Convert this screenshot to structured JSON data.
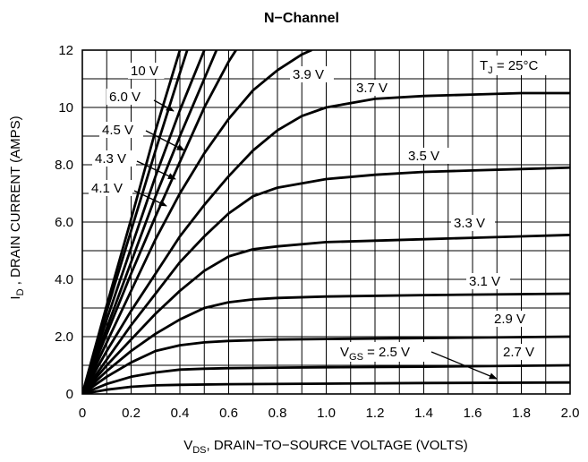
{
  "chart_data": {
    "type": "line",
    "title": "N−Channel",
    "xlabel": {
      "main": "V",
      "sub": "DS",
      "rest": ", DRAIN−TO−SOURCE VOLTAGE (VOLTS)"
    },
    "ylabel": {
      "main": "I",
      "sub": "D",
      "rest": " , DRAIN CURRENT (AMPS)"
    },
    "xlim": [
      0,
      2.0
    ],
    "ylim": [
      0,
      12
    ],
    "x_ticks": [
      0,
      0.2,
      0.4,
      0.6,
      0.8,
      1.0,
      1.2,
      1.4,
      1.6,
      1.8,
      2.0
    ],
    "x_tick_labels": [
      "0",
      "0.2",
      "0.4",
      "0.6",
      "0.8",
      "1.0",
      "1.2",
      "1.4",
      "1.6",
      "1.8",
      "2.0"
    ],
    "y_ticks": [
      0,
      2,
      4,
      6,
      8,
      10,
      12
    ],
    "y_tick_labels": [
      "0",
      "2.0",
      "4.0",
      "6.0",
      "8.0",
      "10",
      "12"
    ],
    "grid": true,
    "series": [
      {
        "name": "10 V",
        "x": [
          0,
          0.1,
          0.2,
          0.3,
          0.4
        ],
        "y": [
          0,
          3.1,
          6.1,
          9.2,
          12.0
        ]
      },
      {
        "name": "6.0 V",
        "x": [
          0,
          0.1,
          0.2,
          0.3,
          0.4,
          0.43
        ],
        "y": [
          0,
          2.9,
          5.7,
          8.5,
          11.2,
          12.0
        ]
      },
      {
        "name": "4.5 V",
        "x": [
          0,
          0.1,
          0.2,
          0.3,
          0.4,
          0.5
        ],
        "y": [
          0,
          2.6,
          5.1,
          7.6,
          9.9,
          12.0
        ]
      },
      {
        "name": "4.3 V",
        "x": [
          0,
          0.1,
          0.2,
          0.3,
          0.4,
          0.5,
          0.55
        ],
        "y": [
          0,
          2.3,
          4.6,
          6.9,
          9.0,
          11.0,
          12.0
        ]
      },
      {
        "name": "4.1 V",
        "x": [
          0,
          0.1,
          0.2,
          0.3,
          0.4,
          0.5,
          0.6,
          0.63
        ],
        "y": [
          0,
          2.1,
          4.2,
          6.2,
          8.1,
          10.0,
          11.6,
          12.0
        ]
      },
      {
        "name": "3.9 V",
        "x": [
          0,
          0.1,
          0.2,
          0.3,
          0.4,
          0.5,
          0.6,
          0.7,
          0.8,
          0.9,
          0.94
        ],
        "y": [
          0,
          1.8,
          3.6,
          5.4,
          7.0,
          8.4,
          9.6,
          10.6,
          11.3,
          11.85,
          12.0
        ]
      },
      {
        "name": "3.7 V",
        "x": [
          0,
          0.1,
          0.2,
          0.3,
          0.4,
          0.5,
          0.6,
          0.7,
          0.8,
          0.9,
          1.0,
          1.2,
          1.4,
          1.6,
          1.8,
          2.0
        ],
        "y": [
          0,
          1.5,
          2.9,
          4.2,
          5.5,
          6.6,
          7.6,
          8.5,
          9.2,
          9.7,
          10.0,
          10.3,
          10.4,
          10.45,
          10.5,
          10.5
        ]
      },
      {
        "name": "3.5 V",
        "x": [
          0,
          0.1,
          0.2,
          0.3,
          0.4,
          0.5,
          0.6,
          0.7,
          0.8,
          1.0,
          1.2,
          1.4,
          1.6,
          1.8,
          2.0
        ],
        "y": [
          0,
          1.2,
          2.4,
          3.5,
          4.6,
          5.5,
          6.3,
          6.9,
          7.2,
          7.5,
          7.65,
          7.75,
          7.8,
          7.85,
          7.9
        ]
      },
      {
        "name": "3.3 V",
        "x": [
          0,
          0.1,
          0.2,
          0.3,
          0.4,
          0.5,
          0.6,
          0.7,
          0.8,
          1.0,
          1.2,
          1.4,
          1.6,
          1.8,
          2.0
        ],
        "y": [
          0,
          1.0,
          1.9,
          2.8,
          3.6,
          4.3,
          4.8,
          5.05,
          5.15,
          5.3,
          5.35,
          5.4,
          5.45,
          5.5,
          5.55
        ]
      },
      {
        "name": "3.1 V",
        "x": [
          0,
          0.1,
          0.2,
          0.3,
          0.4,
          0.5,
          0.6,
          0.7,
          0.8,
          1.0,
          1.4,
          2.0
        ],
        "y": [
          0,
          0.8,
          1.5,
          2.1,
          2.6,
          3.0,
          3.2,
          3.3,
          3.35,
          3.4,
          3.45,
          3.5
        ]
      },
      {
        "name": "2.9 V",
        "x": [
          0,
          0.1,
          0.2,
          0.3,
          0.4,
          0.5,
          0.6,
          0.8,
          1.0,
          1.4,
          2.0
        ],
        "y": [
          0,
          0.6,
          1.1,
          1.5,
          1.7,
          1.8,
          1.85,
          1.9,
          1.92,
          1.95,
          2.0
        ]
      },
      {
        "name": "2.7 V",
        "x": [
          0,
          0.1,
          0.2,
          0.3,
          0.4,
          0.5,
          0.6,
          0.8,
          1.0,
          1.4,
          2.0
        ],
        "y": [
          0,
          0.35,
          0.6,
          0.75,
          0.85,
          0.88,
          0.9,
          0.92,
          0.93,
          0.95,
          1.0
        ]
      },
      {
        "name": "V_GS = 2.5 V",
        "x": [
          0,
          0.1,
          0.2,
          0.3,
          0.4,
          0.6,
          1.0,
          1.4,
          2.0
        ],
        "y": [
          0,
          0.15,
          0.25,
          0.3,
          0.32,
          0.34,
          0.36,
          0.38,
          0.4
        ]
      }
    ],
    "annotations": {
      "tj": {
        "main": "T",
        "sub": "J",
        "rest": " = 25°C"
      },
      "vgs": {
        "main": "V",
        "sub": "GS",
        "rest": " = 2.5 V"
      },
      "curve_labels": [
        "10 V",
        "6.0 V",
        "4.5 V",
        "4.3 V",
        "4.1 V",
        "3.9 V",
        "3.7 V",
        "3.5 V",
        "3.3 V",
        "3.1 V",
        "2.9 V",
        "2.7 V"
      ]
    }
  }
}
